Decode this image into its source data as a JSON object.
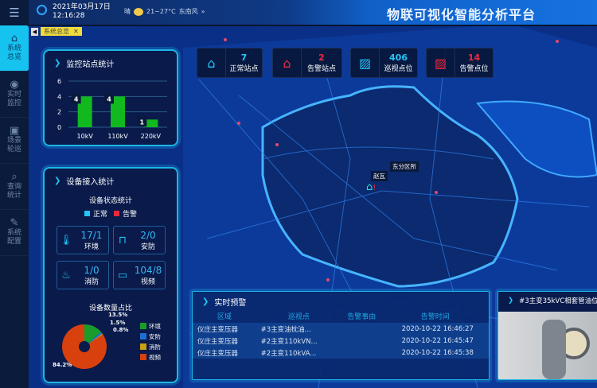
{
  "header": {
    "date": "2021年03月17日",
    "time": "12:16:28",
    "weather": "晴",
    "temperature": "21~27°C",
    "wind": "东南风",
    "title": "物联可视化智能分析平台"
  },
  "tabs": [
    {
      "label": "系统总览"
    }
  ],
  "sidebar": {
    "items": [
      {
        "label": "系统总览",
        "icon": "home-icon",
        "active": true
      },
      {
        "label": "实时监控",
        "icon": "eye-icon"
      },
      {
        "label": "场景轮巡",
        "icon": "scene-icon"
      },
      {
        "label": "查询统计",
        "icon": "search-icon"
      },
      {
        "label": "系统配置",
        "icon": "wrench-icon"
      }
    ]
  },
  "stats": [
    {
      "value": "7",
      "label": "正常站点",
      "color": "#22c6f7"
    },
    {
      "value": "2",
      "label": "告警站点",
      "color": "#f0283c"
    },
    {
      "value": "406",
      "label": "巡视点位",
      "color": "#22c6f7"
    },
    {
      "value": "14",
      "label": "告警点位",
      "color": "#f0283c"
    }
  ],
  "station_panel": {
    "title": "监控站点统计"
  },
  "chart_data": [
    {
      "type": "bar",
      "title": "",
      "categories": [
        "10kV",
        "110kV",
        "220kV"
      ],
      "values": [
        4,
        4,
        1
      ],
      "ylim": [
        0,
        6
      ],
      "yticks": [
        0,
        2,
        4,
        6
      ],
      "color": "#11b81e"
    },
    {
      "type": "pie",
      "title": "设备数量占比",
      "series": [
        {
          "name": "环境",
          "value": 13.5,
          "color": "#1a9c2a"
        },
        {
          "name": "安防",
          "value": 1.5,
          "color": "#1f6fd0"
        },
        {
          "name": "消防",
          "value": 0.8,
          "color": "#c8a012"
        },
        {
          "name": "视频",
          "value": 84.2,
          "color": "#d8400e"
        }
      ],
      "labels": [
        "13.5%",
        "1.5%",
        "0.8%",
        "84.2%"
      ]
    }
  ],
  "device_panel": {
    "title": "设备接入统计",
    "status_title": "设备状态统计",
    "legend_normal": "正常",
    "legend_alarm": "告警",
    "cards": [
      {
        "normal": "17",
        "alarm": "1",
        "label": "环境"
      },
      {
        "normal": "2",
        "alarm": "0",
        "label": "安防"
      },
      {
        "normal": "1",
        "alarm": "0",
        "label": "消防"
      },
      {
        "normal": "104",
        "alarm": "8",
        "label": "视频"
      }
    ]
  },
  "map": {
    "labels": [
      "东分区所",
      "赵瓦"
    ]
  },
  "alarm_panel": {
    "title": "实时预警",
    "columns": [
      "区域",
      "巡视点",
      "告警事由",
      "告警时间"
    ],
    "rows": [
      [
        "仪庄主变压器",
        "#3主变油枕油...",
        "",
        "2020-10-22 16:46:27"
      ],
      [
        "仪庄主变压器",
        "#2主变110kVN...",
        "",
        "2020-10-22 16:45:47"
      ],
      [
        "仪庄主变压器",
        "#2主变110kVA...",
        "",
        "2020-10-22 16:45:38"
      ]
    ]
  },
  "video_panel": {
    "title": "#3主变35kVC相套管油位"
  }
}
